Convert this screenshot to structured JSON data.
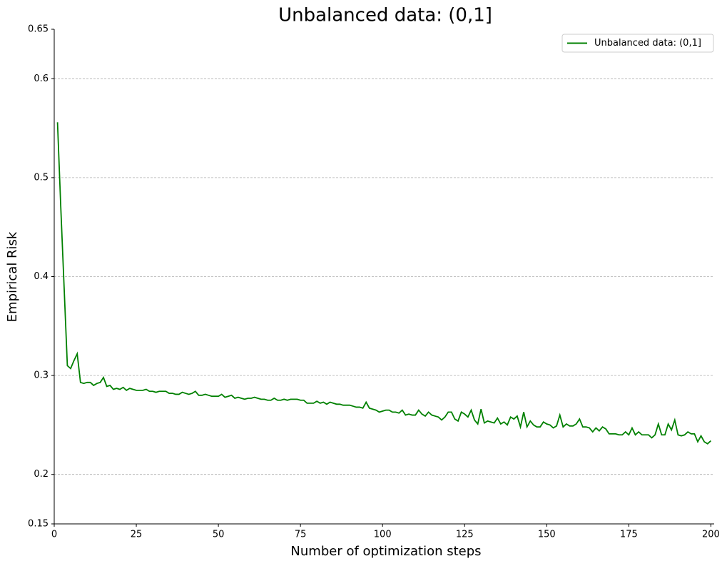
{
  "chart_data": {
    "type": "line",
    "title": "Unbalanced data: (0,1]",
    "xlabel": "Number of optimization steps",
    "ylabel": "Empirical Risk",
    "x": [
      1,
      2,
      3,
      4,
      5,
      6,
      7,
      8,
      9,
      10,
      11,
      12,
      13,
      14,
      15,
      16,
      17,
      18,
      19,
      20,
      21,
      22,
      23,
      24,
      25,
      26,
      27,
      28,
      29,
      30,
      31,
      32,
      33,
      34,
      35,
      36,
      37,
      38,
      39,
      40,
      41,
      42,
      43,
      44,
      45,
      46,
      47,
      48,
      49,
      50,
      51,
      52,
      53,
      54,
      55,
      56,
      57,
      58,
      59,
      60,
      61,
      62,
      63,
      64,
      65,
      66,
      67,
      68,
      69,
      70,
      71,
      72,
      73,
      74,
      75,
      76,
      77,
      78,
      79,
      80,
      81,
      82,
      83,
      84,
      85,
      86,
      87,
      88,
      89,
      90,
      91,
      92,
      93,
      94,
      95,
      96,
      97,
      98,
      99,
      100,
      101,
      102,
      103,
      104,
      105,
      106,
      107,
      108,
      109,
      110,
      111,
      112,
      113,
      114,
      115,
      116,
      117,
      118,
      119,
      120,
      121,
      122,
      123,
      124,
      125,
      126,
      127,
      128,
      129,
      130,
      131,
      132,
      133,
      134,
      135,
      136,
      137,
      138,
      139,
      140,
      141,
      142,
      143,
      144,
      145,
      146,
      147,
      148,
      149,
      150,
      151,
      152,
      153,
      154,
      155,
      156,
      157,
      158,
      159,
      160,
      161,
      162,
      163,
      164,
      165,
      166,
      167,
      168,
      169,
      170,
      171,
      172,
      173,
      174,
      175,
      176,
      177,
      178,
      179,
      180,
      181,
      182,
      183,
      184,
      185,
      186,
      187,
      188,
      189,
      190,
      191,
      192,
      193,
      194,
      195,
      196,
      197,
      198,
      199,
      200
    ],
    "series": [
      {
        "name": "Unbalanced data: (0,1]",
        "color": "#008000",
        "values": [
          0.556,
          0.47,
          0.39,
          0.31,
          0.307,
          0.315,
          0.322,
          0.293,
          0.292,
          0.293,
          0.293,
          0.29,
          0.292,
          0.293,
          0.298,
          0.289,
          0.29,
          0.286,
          0.287,
          0.286,
          0.288,
          0.285,
          0.287,
          0.286,
          0.285,
          0.285,
          0.285,
          0.286,
          0.284,
          0.284,
          0.283,
          0.284,
          0.284,
          0.284,
          0.282,
          0.282,
          0.281,
          0.281,
          0.283,
          0.282,
          0.281,
          0.282,
          0.284,
          0.28,
          0.28,
          0.281,
          0.28,
          0.279,
          0.279,
          0.279,
          0.281,
          0.278,
          0.279,
          0.28,
          0.277,
          0.278,
          0.277,
          0.276,
          0.277,
          0.277,
          0.278,
          0.277,
          0.276,
          0.276,
          0.275,
          0.275,
          0.277,
          0.275,
          0.275,
          0.276,
          0.275,
          0.276,
          0.276,
          0.276,
          0.275,
          0.275,
          0.272,
          0.272,
          0.272,
          0.274,
          0.272,
          0.273,
          0.271,
          0.273,
          0.272,
          0.271,
          0.271,
          0.27,
          0.27,
          0.27,
          0.269,
          0.268,
          0.268,
          0.267,
          0.273,
          0.267,
          0.266,
          0.265,
          0.263,
          0.264,
          0.265,
          0.265,
          0.263,
          0.263,
          0.262,
          0.265,
          0.26,
          0.261,
          0.26,
          0.26,
          0.265,
          0.261,
          0.259,
          0.263,
          0.26,
          0.259,
          0.258,
          0.255,
          0.258,
          0.263,
          0.263,
          0.256,
          0.254,
          0.263,
          0.261,
          0.258,
          0.265,
          0.255,
          0.251,
          0.266,
          0.252,
          0.254,
          0.253,
          0.252,
          0.257,
          0.251,
          0.253,
          0.25,
          0.258,
          0.256,
          0.259,
          0.248,
          0.263,
          0.248,
          0.254,
          0.25,
          0.248,
          0.248,
          0.253,
          0.251,
          0.25,
          0.247,
          0.249,
          0.26,
          0.248,
          0.251,
          0.249,
          0.249,
          0.251,
          0.256,
          0.248,
          0.248,
          0.247,
          0.243,
          0.247,
          0.244,
          0.248,
          0.246,
          0.241,
          0.241,
          0.241,
          0.24,
          0.24,
          0.243,
          0.24,
          0.247,
          0.24,
          0.243,
          0.24,
          0.24,
          0.24,
          0.237,
          0.24,
          0.251,
          0.24,
          0.24,
          0.251,
          0.245,
          0.255,
          0.24,
          0.239,
          0.24,
          0.243,
          0.241,
          0.241,
          0.233,
          0.239,
          0.233,
          0.231,
          0.234
        ]
      }
    ],
    "xlim": [
      0,
      201
    ],
    "xticks": [
      0,
      25,
      50,
      75,
      100,
      125,
      150,
      175,
      200
    ],
    "ylim": [
      0.15,
      0.65
    ],
    "yticks": [
      0.15,
      0.2,
      0.3,
      0.4,
      0.5,
      0.6,
      0.65
    ],
    "grid": true,
    "legend": "upper right"
  }
}
